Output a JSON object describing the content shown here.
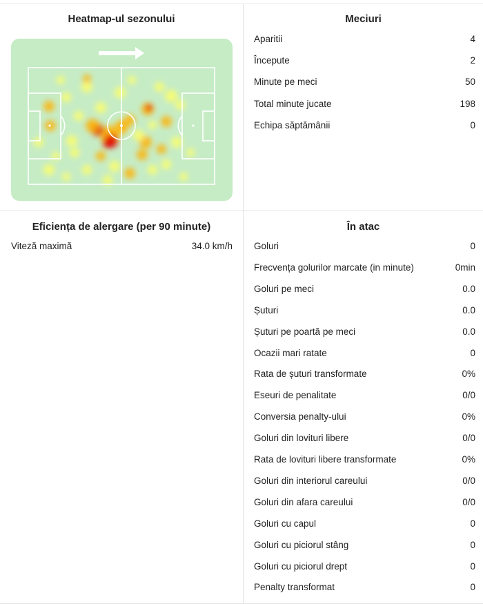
{
  "heatmap": {
    "title": "Heatmap-ul sezonului"
  },
  "matches": {
    "title": "Meciuri",
    "rows": [
      {
        "label": "Aparitii",
        "value": "4"
      },
      {
        "label": "Începute",
        "value": "2"
      },
      {
        "label": "Minute pe meci",
        "value": "50"
      },
      {
        "label": "Total minute jucate",
        "value": "198"
      },
      {
        "label": "Echipa săptămânii",
        "value": "0"
      }
    ]
  },
  "running": {
    "title": "Eficiența de alergare (per 90 minute)",
    "rows": [
      {
        "label": "Viteză maximă",
        "value": "34.0 km/h"
      }
    ]
  },
  "attack": {
    "title": "În atac",
    "rows": [
      {
        "label": "Goluri",
        "value": "0"
      },
      {
        "label": "Frecvența golurilor marcate (in minute)",
        "value": "0min"
      },
      {
        "label": "Goluri pe meci",
        "value": "0.0"
      },
      {
        "label": "Șuturi",
        "value": "0.0"
      },
      {
        "label": "Șuturi pe poartă pe meci",
        "value": "0.0"
      },
      {
        "label": "Ocazii mari ratate",
        "value": "0"
      },
      {
        "label": "Rata de șuturi transformate",
        "value": "0%"
      },
      {
        "label": "Eseuri de penalitate",
        "value": "0/0"
      },
      {
        "label": "Conversia penalty-ului",
        "value": "0%"
      },
      {
        "label": "Goluri din lovituri libere",
        "value": "0/0"
      },
      {
        "label": "Rata de lovituri libere transformate",
        "value": "0%"
      },
      {
        "label": "Goluri din interiorul careului",
        "value": "0/0"
      },
      {
        "label": "Goluri din afara careului",
        "value": "0/0"
      },
      {
        "label": "Goluri cu capul",
        "value": "0"
      },
      {
        "label": "Goluri cu piciorul stâng",
        "value": "0"
      },
      {
        "label": "Goluri cu piciorul drept",
        "value": "0"
      },
      {
        "label": "Penalty transformat",
        "value": "0"
      }
    ]
  },
  "colors": {
    "pitch": "#c6ecc6",
    "pitch_lines": "#ffffff",
    "heat_hot": "#e00000",
    "heat_warm": "#ffb000",
    "heat_cool": "#ffff66",
    "divider": "#e3e3e3"
  }
}
